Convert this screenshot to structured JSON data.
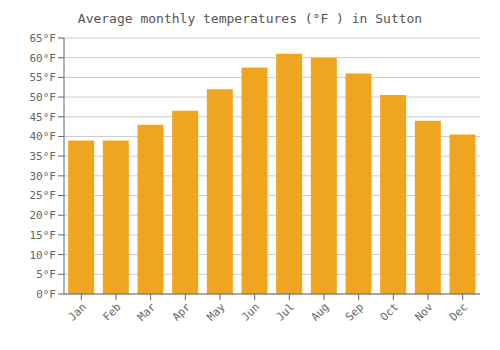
{
  "chart_data": {
    "type": "bar",
    "title": "Average monthly temperatures (°F ) in Sutton",
    "categories": [
      "Jan",
      "Feb",
      "Mar",
      "Apr",
      "May",
      "Jun",
      "Jul",
      "Aug",
      "Sep",
      "Oct",
      "Nov",
      "Dec"
    ],
    "values": [
      39,
      39,
      43,
      46.5,
      52,
      57.5,
      61,
      60,
      56,
      50.5,
      44,
      40.5
    ],
    "color": "#EFA51F",
    "ylim": [
      0,
      65
    ],
    "yticks": [
      {
        "value": 0,
        "label": "0°F"
      },
      {
        "value": 5,
        "label": "5°F"
      },
      {
        "value": 10,
        "label": "10°F"
      },
      {
        "value": 15,
        "label": "15°F"
      },
      {
        "value": 20,
        "label": "20°F"
      },
      {
        "value": 25,
        "label": "25°F"
      },
      {
        "value": 30,
        "label": "30°F"
      },
      {
        "value": 35,
        "label": "35°F"
      },
      {
        "value": 40,
        "label": "40°F"
      },
      {
        "value": 45,
        "label": "45°F"
      },
      {
        "value": 50,
        "label": "50°F"
      },
      {
        "value": 55,
        "label": "55°F"
      },
      {
        "value": 60,
        "label": "60°F"
      },
      {
        "value": 65,
        "label": "65°F"
      }
    ],
    "grid": true
  }
}
